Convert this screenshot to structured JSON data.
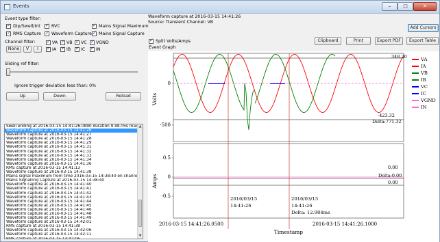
{
  "window": {
    "title": "Events"
  },
  "filters": {
    "event_type_label": "Event type filter:",
    "event_types": [
      "Dip/Swell/Int",
      "RVC",
      "Mains Signal Maximum",
      "RMS Capture",
      "Waveform Capture",
      "Mains Signal Capture"
    ],
    "channel_label": "Channel filter:",
    "none_button": "None",
    "v_button": "V",
    "i_button": "I",
    "channels": [
      "VA",
      "VB",
      "VC",
      "VGND",
      "IA",
      "IB",
      "IC",
      "IN"
    ],
    "sliding_label": "Sliding ref filter:",
    "trigger_text": "Ignore trigger deviation less than: 0%",
    "up_button": "Up",
    "down_button": "Down",
    "reload_button": "Reload"
  },
  "event_list": [
    "Swell ending at 2016-03-15 14:41:26.0890 duration 9.987ms maxi",
    "Waveform capture at 2016-03-15 14:41:26",
    "Waveform capture at 2016-03-15 14:41:27",
    "Waveform capture at 2016-03-15 14:41:28",
    "Waveform capture at 2016-03-15 14:41:29",
    "Waveform capture at 2016-03-15 14:41:31",
    "Waveform capture at 2016-03-15 14:41:32",
    "Waveform capture at 2016-03-15 14:41:33",
    "Waveform capture at 2016-03-15 14:41:34",
    "Waveform capture at 2016-03-15 14:41:36",
    "RMS capture at 2016-03-15 14:41:13",
    "Waveform capture at 2016-03-15 14:41:38",
    "Mains signal maximum from time 2016-03-15 14:38:40 on channel",
    "Mains Signalling Capture at 2016-03-15 14:38:40",
    "Waveform capture at 2016-03-15 14:41:40",
    "Waveform capture at 2016-03-15 14:41:41",
    "Waveform capture at 2016-03-15 14:41:42",
    "Waveform capture at 2016-03-15 14:41:43",
    "Waveform capture at 2016-03-15 14:41:44",
    "Waveform capture at 2016-03-15 14:41:45",
    "Waveform capture at 2016-03-15 14:41:46",
    "Waveform capture at 2016-03-15 14:41:48",
    "Waveform capture at 2016-03-15 14:41:49",
    "Waveform capture at 2016-03-15 14:42:01",
    "RMS capture at 2016-03-15 14:41:38",
    "Waveform capture at 2016-03-15 14:42:06",
    "Waveform capture at 2016-03-15 14:42:11",
    "RMS capture at 2016-03-15 14:42:06"
  ],
  "selected_index": 1,
  "header": {
    "line1": "Waveform capture at 2016-03-15 14:41:26",
    "line2": "Source: Transient Channel: VB",
    "split_label": "Split Volts/Amps",
    "graph_label": "Event Graph"
  },
  "toolbar": {
    "add_cursors": "Add Cursors",
    "clipboard": "Clipboard",
    "print": "Print",
    "export_pdf": "Export PDF",
    "export_table": "Export Table"
  },
  "chart_data": {
    "type": "line",
    "volts_panel": {
      "ylabel": "Volts",
      "yticks": [
        0,
        -500
      ],
      "series": [
        {
          "name": "VA",
          "color": "#ff0000",
          "amplitude": 348.2
        },
        {
          "name": "VB",
          "color": "#008000",
          "amplitude": 348.2
        },
        {
          "name": "VC",
          "color": "#0000ff",
          "amplitude": 0
        },
        {
          "name": "VGND",
          "color": "#ff66cc",
          "amplitude": 0
        }
      ],
      "annotations": [
        "348.20",
        "-423.32",
        "Delta:771.32"
      ]
    },
    "amps_panel": {
      "ylabel": "Amps",
      "yticks": [
        0.5,
        0,
        -0.5
      ],
      "series": [
        {
          "name": "IA",
          "color": "#ff0000",
          "value": 0
        },
        {
          "name": "IB",
          "color": "#008000",
          "value": 0
        },
        {
          "name": "IC",
          "color": "#0000ff",
          "value": 0
        },
        {
          "name": "IN",
          "color": "#ff66cc",
          "value": 0
        }
      ],
      "annotations": [
        "0.00",
        "Delta:0.00",
        "0.00"
      ]
    },
    "cursors": [
      {
        "date": "2016/03/15",
        "time": "14:41:26"
      },
      {
        "date": "2016/03/15",
        "time": "14:41:26",
        "delta": "Delta: 12.984ms"
      }
    ],
    "xticks": [
      "2016-03-15 14:41:26.0500",
      "2016-03-15 14:41:26.1000"
    ],
    "xlabel": "Timestamp",
    "legend": [
      "VA",
      "IA",
      "VB",
      "IB",
      "VC",
      "IC",
      "VGND",
      "IN"
    ],
    "legend_colors": [
      "#ff0000",
      "#ff0000",
      "#008000",
      "#008000",
      "#0000ff",
      "#0000ff",
      "#ff66cc",
      "#ff66cc"
    ]
  }
}
